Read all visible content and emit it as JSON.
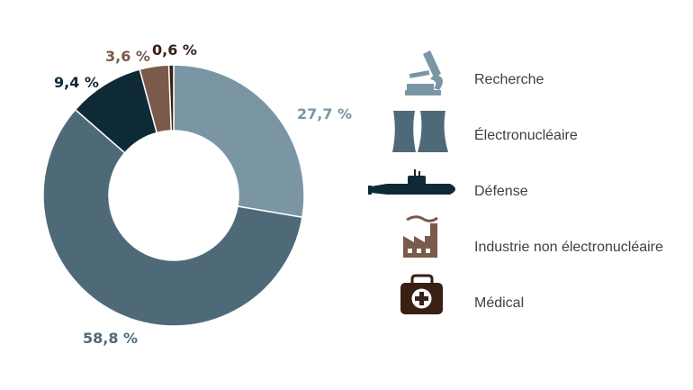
{
  "chart_data": {
    "type": "pie",
    "title": "",
    "categories": [
      "Recherche",
      "Électronucléaire",
      "Défense",
      "Industrie non électronucléaire",
      "Médical"
    ],
    "values": [
      27.7,
      58.8,
      9.4,
      3.6,
      0.6
    ],
    "value_labels": [
      "27,7 %",
      "58,8 %",
      "9,4 %",
      "3,6 %",
      "0,6 %"
    ],
    "colors": [
      "#7a96a4",
      "#4e6a78",
      "#0e2a36",
      "#7a5a4a",
      "#3a1f14"
    ],
    "donut": true,
    "legend": {
      "position": "right",
      "icons": [
        "microscope-icon",
        "cooling-towers-icon",
        "submarine-icon",
        "factory-icon",
        "medical-kit-icon"
      ]
    }
  }
}
